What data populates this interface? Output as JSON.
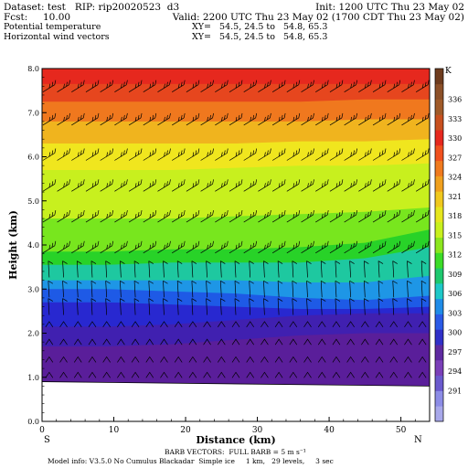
{
  "header": {
    "dataset": "Dataset: test   RIP: rip20020523  d3",
    "init": "Init: 1200 UTC Thu 23 May 02",
    "fcst": "Fcst:     10.00",
    "valid": "Valid: 2200 UTC Thu 23 May 02 (1700 CDT Thu 23 May 02)",
    "field1": "Potential temperature",
    "xy1": "XY=   54.5, 24.5 to   54.8, 65.3",
    "field2": "Horizontal wind vectors",
    "xy2": "XY=   54.5, 24.5 to   54.8, 65.3"
  },
  "footer": {
    "barb": "BARB VECTORS:  FULL BARB = 5 m s⁻¹",
    "model": "Model info: V3.5.0 No Cumulus Blackadar  Simple ice     1 km,   29 levels,     3 sec"
  },
  "chart_data": {
    "type": "heatmap",
    "title": "",
    "xlabel": "Distance (km)",
    "ylabel": "Height (km)",
    "xlim": [
      0,
      54
    ],
    "ylim": [
      0,
      8
    ],
    "x_ticks": [
      0,
      10,
      20,
      30,
      40,
      50
    ],
    "y_ticks": [
      "0.0",
      "1.0",
      "2.0",
      "3.0",
      "4.0",
      "5.0",
      "6.0",
      "7.0",
      "8.0"
    ],
    "x_end_labels": {
      "left": "S",
      "right": "N"
    },
    "colorbar_unit": "K",
    "colorbar_labels": [
      291,
      294,
      297,
      300,
      303,
      306,
      309,
      312,
      315,
      318,
      321,
      324,
      327,
      330,
      333,
      336
    ],
    "colorbar_colors": [
      "#a8a8ea",
      "#8c8ce6",
      "#6a5acd",
      "#7a3fb8",
      "#5e2aa0",
      "#3030c8",
      "#2a5ae6",
      "#1f8ce8",
      "#1ec8c8",
      "#1ec86e",
      "#3cdc28",
      "#8ce61e",
      "#c8f01e",
      "#e6e61e",
      "#f0c81e",
      "#f0a01e",
      "#f07a1e",
      "#f0501e",
      "#e6281e",
      "#c8501e",
      "#a05a28",
      "#8c5028",
      "#6e3c1e"
    ],
    "terrain_height_km": {
      "x": [
        0,
        54
      ],
      "y": [
        0.9,
        0.8
      ]
    },
    "contour_layers": [
      {
        "theta": 300,
        "top_km": [
          1.7,
          1.7,
          1.75,
          1.85,
          1.95,
          2.0,
          2.0
        ]
      },
      {
        "theta": 303,
        "top_km": [
          2.15,
          2.15,
          2.2,
          2.3,
          2.4,
          2.45,
          2.45
        ]
      },
      {
        "theta": 306,
        "top_km": [
          2.7,
          2.7,
          2.65,
          2.6,
          2.55,
          2.55,
          2.6
        ]
      },
      {
        "theta": 309,
        "top_km": [
          3.0,
          3.0,
          2.95,
          2.9,
          2.8,
          2.75,
          2.85
        ]
      },
      {
        "theta": 312,
        "top_km": [
          3.2,
          3.2,
          3.2,
          3.2,
          3.15,
          3.15,
          3.3
        ]
      },
      {
        "theta": 315,
        "top_km": [
          3.55,
          3.55,
          3.6,
          3.6,
          3.6,
          3.7,
          3.95
        ]
      },
      {
        "theta": 318,
        "top_km": [
          3.85,
          3.85,
          3.9,
          3.9,
          3.95,
          4.05,
          4.35
        ]
      },
      {
        "theta": 321,
        "top_km": [
          4.6,
          4.6,
          4.6,
          4.65,
          4.7,
          4.75,
          4.85
        ]
      },
      {
        "theta": 324,
        "top_km": [
          5.7,
          5.7,
          5.7,
          5.75,
          5.8,
          5.8,
          5.85
        ]
      },
      {
        "theta": 327,
        "top_km": [
          6.3,
          6.3,
          6.3,
          6.3,
          6.35,
          6.35,
          6.4
        ]
      },
      {
        "theta": 330,
        "top_km": [
          6.8,
          6.8,
          6.8,
          6.8,
          6.8,
          6.85,
          6.85
        ]
      },
      {
        "theta": 333,
        "top_km": [
          7.25,
          7.25,
          7.25,
          7.25,
          7.25,
          7.3,
          7.3
        ]
      },
      {
        "theta": 336,
        "top_km": [
          7.65,
          7.65,
          7.65,
          7.65,
          7.65,
          7.65,
          7.65
        ]
      },
      {
        "theta": 339,
        "top_km": [
          8.0,
          8.0,
          8.0,
          8.0,
          8.0,
          8.0,
          8.0
        ]
      }
    ],
    "contour_colors": [
      "#5a1e9a",
      "#4020b0",
      "#2828d0",
      "#1e5ae6",
      "#1e96e6",
      "#1ec8a0",
      "#28d228",
      "#78e61e",
      "#c8f01e",
      "#f0e61e",
      "#f0b41e",
      "#f0781e",
      "#e6461e",
      "#e6281e"
    ],
    "below_colors": "#6a2aa8",
    "barb_rows_km": [
      1.05,
      1.4,
      1.8,
      2.2,
      2.6,
      3.0,
      3.45,
      3.9,
      4.6,
      5.3,
      6.0,
      6.8,
      7.55
    ],
    "barb_cols_km": [
      1,
      3,
      5,
      7,
      9,
      11,
      13,
      15,
      17,
      19,
      21,
      23,
      25,
      27,
      29,
      31,
      33,
      35,
      37,
      39,
      41,
      43,
      45,
      47,
      49,
      51,
      53
    ]
  }
}
